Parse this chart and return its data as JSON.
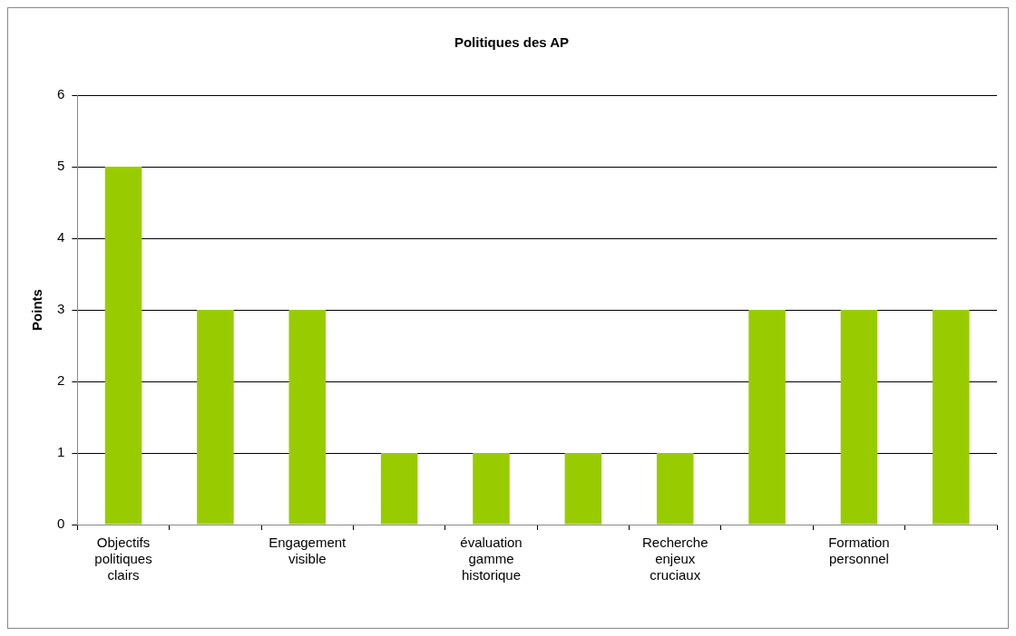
{
  "chart_data": {
    "type": "bar",
    "title": "Politiques des AP",
    "ylabel": "Points",
    "categories": [
      "Objectifs politiques clairs",
      null,
      "Engagement visible",
      null,
      "évaluation gamme historique",
      null,
      "Recherche enjeux cruciaux",
      null,
      "Formation personnel",
      null
    ],
    "values": [
      5,
      3,
      3,
      1,
      1,
      1,
      1,
      3,
      3,
      3
    ],
    "color": "#99cc00",
    "ylim": [
      0,
      6
    ],
    "yticks": [
      0,
      1,
      2,
      3,
      4,
      5,
      6
    ],
    "grid": "y",
    "legend": false
  }
}
